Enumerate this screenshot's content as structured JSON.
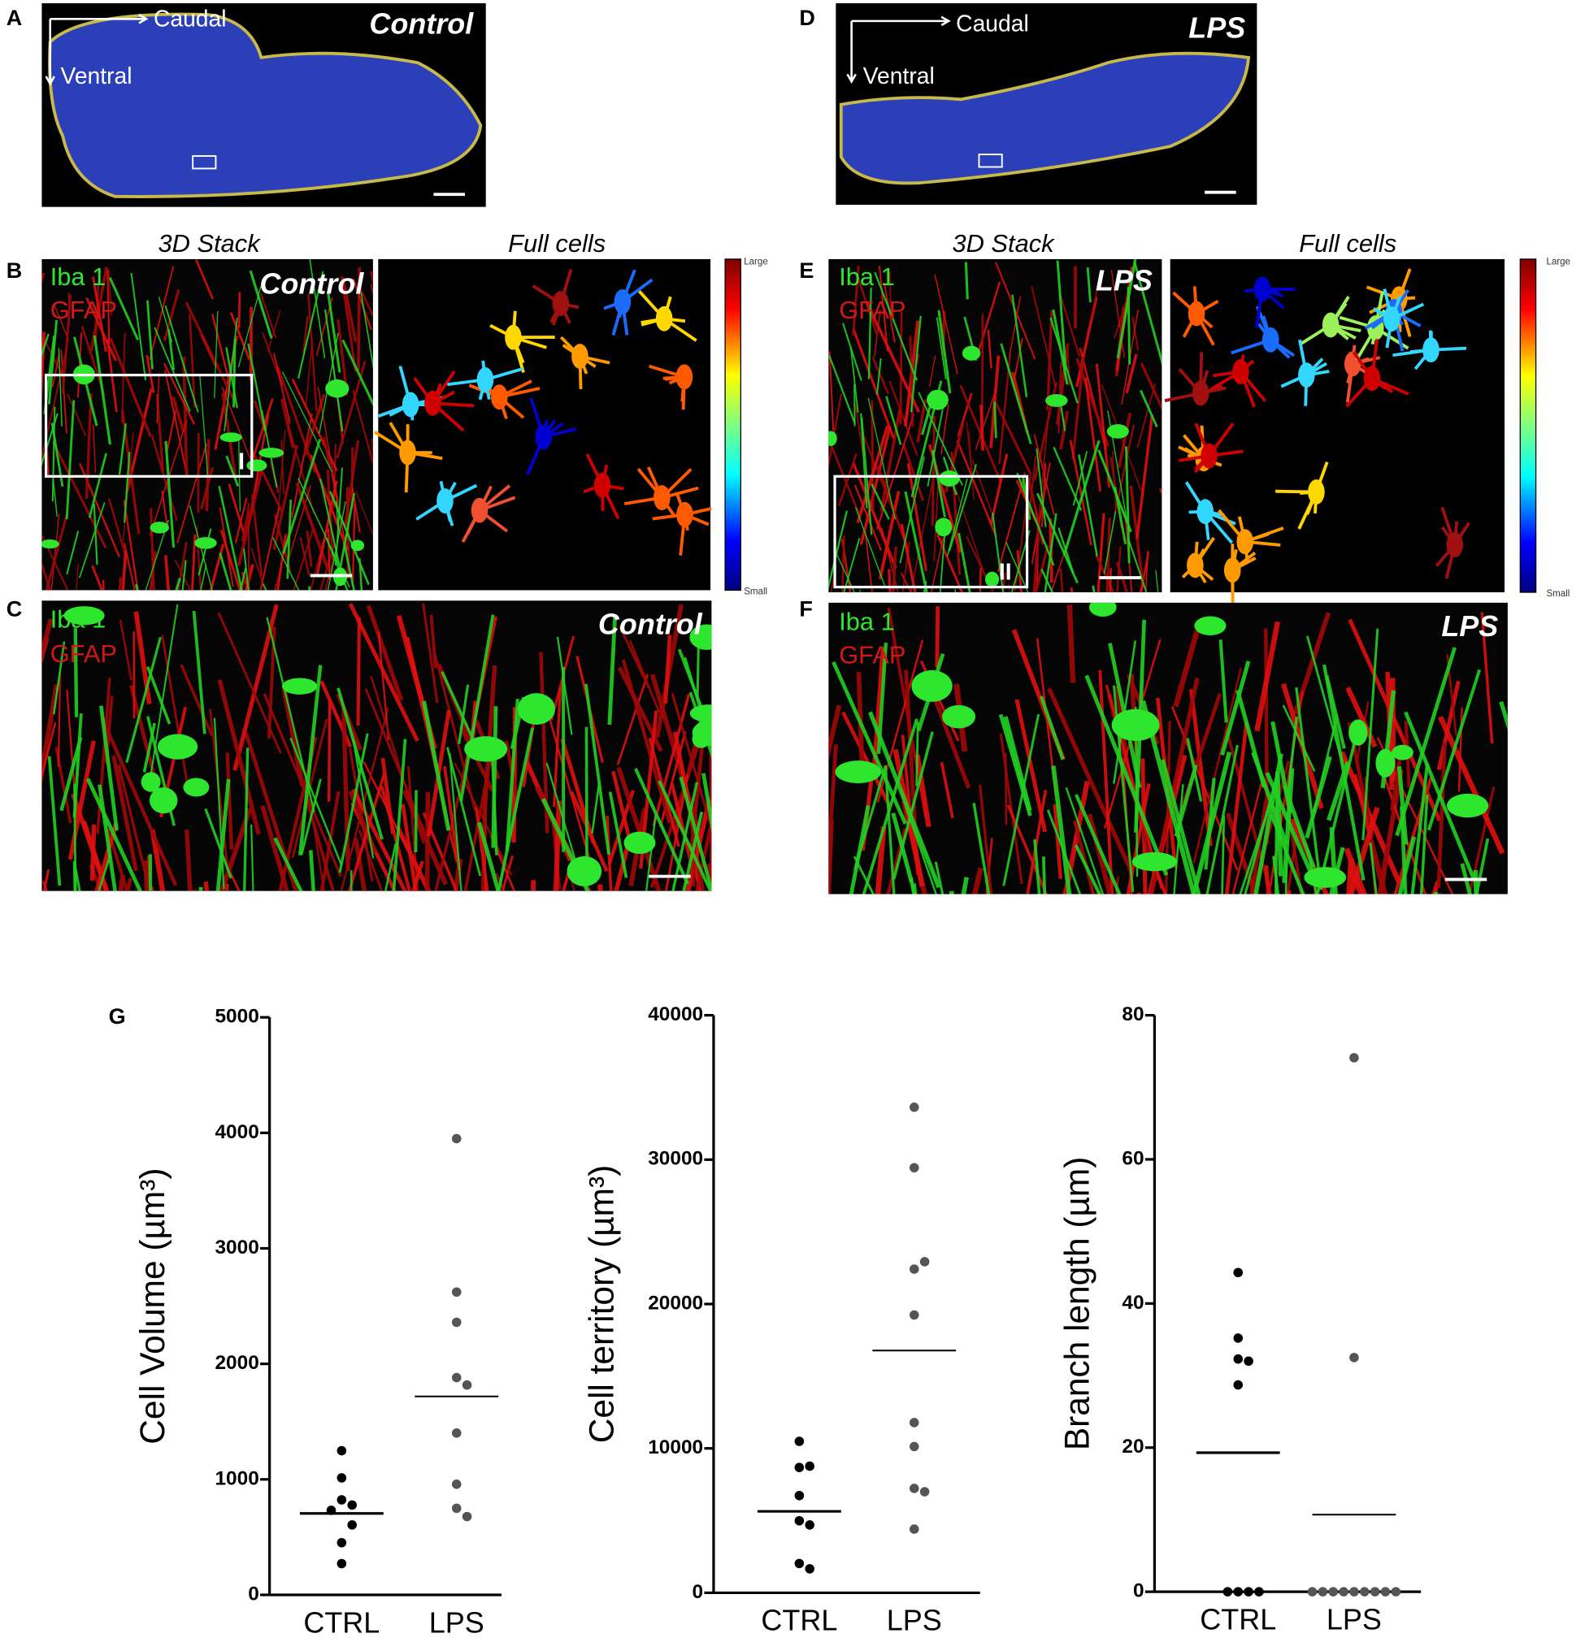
{
  "panel_a": {
    "label": "A",
    "caudal": "Caudal",
    "ventral": "Ventral",
    "condition": "Control"
  },
  "panel_d": {
    "label": "D",
    "caudal": "Caudal",
    "ventral": "Ventral",
    "condition": "LPS"
  },
  "panel_b": {
    "label": "B",
    "stack_title": "3D Stack",
    "cells_title": "Full cells",
    "iba": "Iba 1",
    "gfap": "GFAP",
    "condition": "Control",
    "inset": "I",
    "scale_large": "Large",
    "scale_small": "Small"
  },
  "panel_e": {
    "label": "E",
    "stack_title": "3D Stack",
    "cells_title": "Full cells",
    "iba": "Iba 1",
    "gfap": "GFAP",
    "condition": "LPS",
    "inset": "II",
    "scale_large": "Large",
    "scale_small": "Small"
  },
  "panel_c": {
    "label": "C",
    "iba": "Iba 1",
    "gfap": "GFAP",
    "condition": "Control"
  },
  "panel_f": {
    "label": "F",
    "iba": "Iba 1",
    "gfap": "GFAP",
    "condition": "LPS"
  },
  "chart_label": "G",
  "chart_data": [
    {
      "type": "strip",
      "ylabel": "Cell Volume (µm³)",
      "categories": [
        "CTRL",
        "LPS"
      ],
      "colors": [
        "#000000",
        "#555555"
      ],
      "points": [
        [
          1248,
          1013,
          823,
          778,
          732,
          606,
          452,
          271
        ],
        [
          3950,
          2622,
          2360,
          1881,
          1817,
          1401,
          958,
          750,
          678
        ]
      ],
      "means": [
        705,
        1718
      ],
      "ylim": [
        0,
        5000
      ],
      "yticks": [
        0,
        1000,
        2000,
        3000,
        4000,
        5000
      ]
    },
    {
      "type": "strip",
      "ylabel": "Cell territory (µm³)",
      "categories": [
        "CTRL",
        "LPS"
      ],
      "colors": [
        "#000000",
        "#555555"
      ],
      "points": [
        [
          10490,
          8680,
          8770,
          6730,
          4990,
          4700,
          2030,
          1660
        ],
        [
          33630,
          29440,
          22420,
          22930,
          19240,
          11790,
          10130,
          7230,
          7000,
          4410
        ]
      ],
      "means": [
        5640,
        16780
      ],
      "ylim": [
        0,
        40000
      ],
      "yticks": [
        0,
        10000,
        20000,
        30000,
        40000
      ]
    },
    {
      "type": "strip",
      "ylabel": "Branch length (µm)",
      "categories": [
        "CTRL",
        "LPS"
      ],
      "colors": [
        "#000000",
        "#555555"
      ],
      "points": [
        [
          44.3,
          35.2,
          32.3,
          32.0,
          28.7,
          0,
          0,
          0,
          0
        ],
        [
          74.1,
          32.5,
          0,
          0,
          0,
          0,
          0,
          0,
          0,
          0,
          0
        ]
      ],
      "means": [
        19.3,
        10.7
      ],
      "ylim": [
        0,
        80
      ],
      "yticks": [
        0,
        20,
        40,
        60,
        80
      ]
    }
  ]
}
